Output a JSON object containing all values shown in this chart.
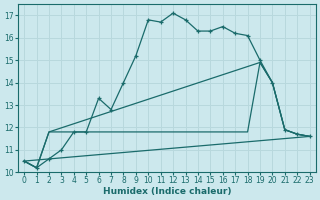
{
  "xlabel": "Humidex (Indice chaleur)",
  "xlim": [
    -0.5,
    23.5
  ],
  "ylim": [
    10,
    17.5
  ],
  "yticks": [
    10,
    11,
    12,
    13,
    14,
    15,
    16,
    17
  ],
  "xticks": [
    0,
    1,
    2,
    3,
    4,
    5,
    6,
    7,
    8,
    9,
    10,
    11,
    12,
    13,
    14,
    15,
    16,
    17,
    18,
    19,
    20,
    21,
    22,
    23
  ],
  "bg_color": "#cce8ed",
  "grid_color": "#b8d8dd",
  "line_color": "#1a6b6b",
  "line1_x": [
    0,
    1,
    2,
    3,
    4,
    5,
    6,
    7,
    8,
    9,
    10,
    11,
    12,
    13,
    14,
    15,
    16,
    17,
    18,
    19,
    20,
    21,
    22,
    23
  ],
  "line1_y": [
    10.5,
    10.2,
    10.6,
    11.0,
    11.8,
    11.8,
    13.3,
    12.8,
    14.0,
    15.2,
    16.8,
    16.7,
    17.1,
    16.8,
    16.3,
    16.3,
    16.5,
    16.2,
    16.1,
    15.0,
    14.0,
    11.9,
    11.7,
    11.6
  ],
  "line2_x": [
    0,
    1,
    2,
    3,
    4,
    5,
    6,
    7,
    8,
    9,
    10,
    11,
    12,
    13,
    14,
    15,
    16,
    17,
    18,
    19,
    20,
    21,
    22,
    23
  ],
  "line2_y": [
    10.5,
    10.2,
    11.8,
    11.8,
    11.8,
    11.8,
    11.8,
    11.8,
    11.8,
    11.8,
    11.8,
    11.8,
    11.8,
    11.8,
    11.8,
    11.8,
    11.8,
    11.8,
    11.8,
    14.9,
    14.0,
    11.9,
    11.7,
    11.6
  ],
  "line3_x": [
    0,
    23
  ],
  "line3_y": [
    10.5,
    11.6
  ],
  "line4_x": [
    0,
    1,
    2,
    19,
    20,
    21,
    22,
    23
  ],
  "line4_y": [
    10.5,
    10.2,
    11.8,
    14.9,
    14.0,
    11.9,
    11.7,
    11.6
  ]
}
